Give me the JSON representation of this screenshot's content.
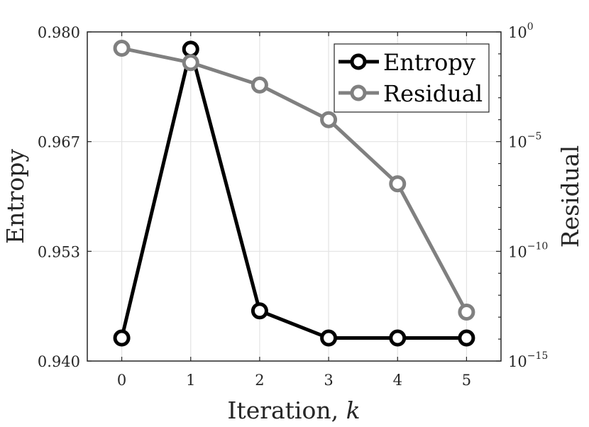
{
  "chart_data": {
    "type": "line",
    "title": "",
    "xlabel": "Iteration, k",
    "xlabel_text": "Iteration, ",
    "xlabel_var": "k",
    "ylabel_left": "Entropy",
    "ylabel_right": "Residual",
    "x": [
      0,
      1,
      2,
      3,
      4,
      5
    ],
    "xlim": [
      -0.5,
      5.5
    ],
    "x_ticks": [
      "0",
      "1",
      "2",
      "3",
      "4",
      "5"
    ],
    "ylim_left": [
      0.94,
      0.98
    ],
    "y_ticks_left": [
      "0.980",
      "0.967",
      "0.953",
      "0.940"
    ],
    "ylim_right_log10": [
      -15,
      0
    ],
    "y_ticks_right": [
      {
        "base": "10",
        "exp": "0"
      },
      {
        "base": "10",
        "exp": "−5"
      },
      {
        "base": "10",
        "exp": "−10"
      },
      {
        "base": "10",
        "exp": "−15"
      }
    ],
    "grid": true,
    "legend_position": "upper right",
    "series": [
      {
        "name": "Entropy",
        "axis": "left",
        "color": "#000000",
        "values": [
          0.9428,
          0.9779,
          0.9461,
          0.9428,
          0.9428,
          0.9428
        ]
      },
      {
        "name": "Residual",
        "axis": "right",
        "scale": "log",
        "color": "#808080",
        "values": [
          0.18,
          0.04,
          0.0038,
          0.0001,
          1.2e-07,
          1.7e-13
        ]
      }
    ]
  },
  "legend": {
    "items": [
      {
        "label": "Entropy",
        "color": "#000000"
      },
      {
        "label": "Residual",
        "color": "#808080"
      }
    ]
  }
}
